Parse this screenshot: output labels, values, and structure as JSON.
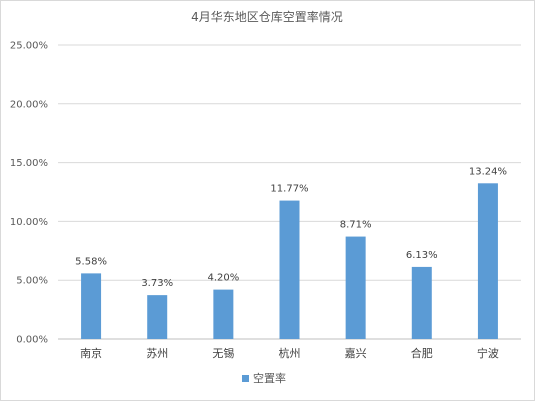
{
  "chart_data": {
    "type": "bar",
    "title": "4月华东地区仓库空置率情况",
    "categories": [
      "南京",
      "苏州",
      "无锡",
      "杭州",
      "嘉兴",
      "合肥",
      "宁波"
    ],
    "series": [
      {
        "name": "空置率",
        "values": [
          5.58,
          3.73,
          4.2,
          11.77,
          8.71,
          6.13,
          13.24
        ],
        "data_labels": [
          "5.58%",
          "3.73%",
          "4.20%",
          "11.77%",
          "8.71%",
          "6.13%",
          "13.24%"
        ],
        "color": "#5b9bd5"
      }
    ],
    "ylim": [
      0,
      25
    ],
    "yticks": [
      "0.00%",
      "5.00%",
      "10.00%",
      "15.00%",
      "20.00%",
      "25.00%"
    ],
    "grid": true,
    "legend": "bottom",
    "colors": {
      "gridline": "#d9d9d9",
      "axis": "#bfbfbf"
    }
  }
}
